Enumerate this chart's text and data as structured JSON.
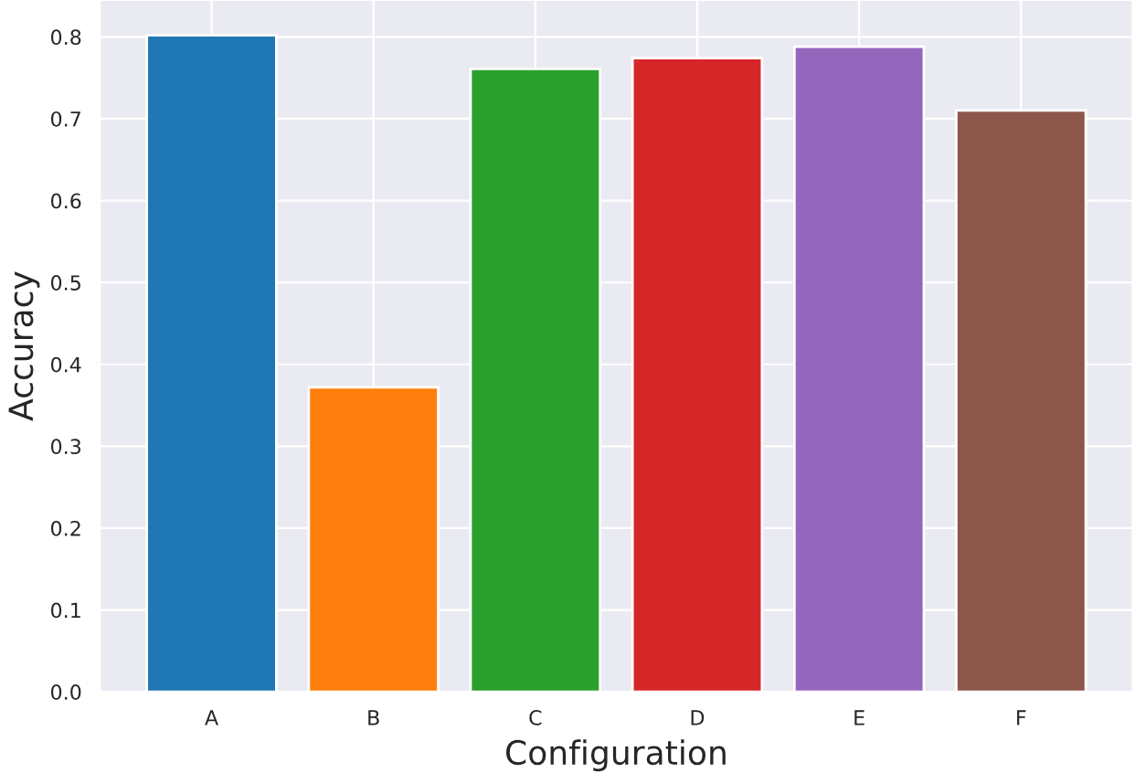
{
  "chart_data": {
    "type": "bar",
    "xlabel": "Configuration",
    "ylabel": "Accuracy",
    "categories": [
      "A",
      "B",
      "C",
      "D",
      "E",
      "F"
    ],
    "values": [
      0.802,
      0.372,
      0.761,
      0.774,
      0.788,
      0.71
    ],
    "colors": [
      "#1f77b4",
      "#ff7f0e",
      "#2ca02c",
      "#d62728",
      "#9467bd",
      "#8c564b"
    ],
    "ylim": [
      0,
      0.845
    ],
    "yticks": [
      {
        "value": 0,
        "label": "0.0"
      },
      0.1,
      0.2,
      0.3,
      0.4,
      0.5,
      0.6,
      0.7,
      0.8
    ],
    "grid": true
  }
}
